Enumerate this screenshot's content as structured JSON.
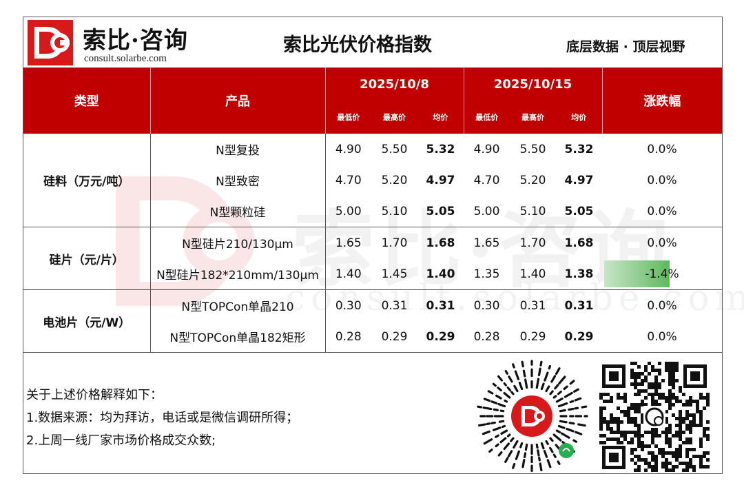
{
  "brand": {
    "name": "索比·咨询",
    "url": "consult.solarbe.com"
  },
  "title": "索比光伏价格指数",
  "slogan": "底层数据 · 顶层视野",
  "table": {
    "headers": {
      "type": "类型",
      "product": "产品",
      "date1": "2025/10/8",
      "date2": "2025/10/15",
      "change": "涨跌幅",
      "min": "最低价",
      "max": "最高价",
      "avg": "均价"
    },
    "groups": [
      {
        "category": "硅料（万元/吨）",
        "rows": [
          {
            "product": "N型复投",
            "d1_min": "4.90",
            "d1_max": "5.50",
            "d1_avg": "5.32",
            "d2_min": "4.90",
            "d2_max": "5.50",
            "d2_avg": "5.32",
            "change": "0.0%"
          },
          {
            "product": "N型致密",
            "d1_min": "4.70",
            "d1_max": "5.20",
            "d1_avg": "4.97",
            "d2_min": "4.70",
            "d2_max": "5.20",
            "d2_avg": "4.97",
            "change": "0.0%"
          },
          {
            "product": "N型颗粒硅",
            "d1_min": "5.00",
            "d1_max": "5.10",
            "d1_avg": "5.05",
            "d2_min": "5.00",
            "d2_max": "5.10",
            "d2_avg": "5.05",
            "change": "0.0%"
          }
        ]
      },
      {
        "category": "硅片（元/片）",
        "rows": [
          {
            "product": "N型硅片210/130μm",
            "d1_min": "1.65",
            "d1_max": "1.70",
            "d1_avg": "1.68",
            "d2_min": "1.65",
            "d2_max": "1.70",
            "d2_avg": "1.68",
            "change": "0.0%"
          },
          {
            "product": "N型硅片182*210mm/130μm",
            "d1_min": "1.40",
            "d1_max": "1.45",
            "d1_avg": "1.40",
            "d2_min": "1.35",
            "d2_max": "1.40",
            "d2_avg": "1.38",
            "change": "-1.4%",
            "change_value": -1.4,
            "highlight_color": "#4caf50"
          }
        ]
      },
      {
        "category": "电池片（元/W）",
        "rows": [
          {
            "product": "N型TOPCon单晶210",
            "d1_min": "0.30",
            "d1_max": "0.31",
            "d1_avg": "0.31",
            "d2_min": "0.30",
            "d2_max": "0.31",
            "d2_avg": "0.31",
            "change": "0.0%"
          },
          {
            "product": "N型TOPCon单晶182矩形",
            "d1_min": "0.28",
            "d1_max": "0.29",
            "d1_avg": "0.29",
            "d2_min": "0.28",
            "d2_max": "0.29",
            "d2_avg": "0.29",
            "change": "0.0%"
          }
        ]
      }
    ]
  },
  "notes": {
    "intro": "关于上述价格解释如下：",
    "item1": "1.数据来源：均为拜访，电话或是微信调研所得；",
    "item2": "2.上周一线厂家市场价格成交众数;"
  },
  "colors": {
    "header_bg": "#c00000",
    "brand_red": "#d7191c",
    "down_green": "#4caf50"
  }
}
